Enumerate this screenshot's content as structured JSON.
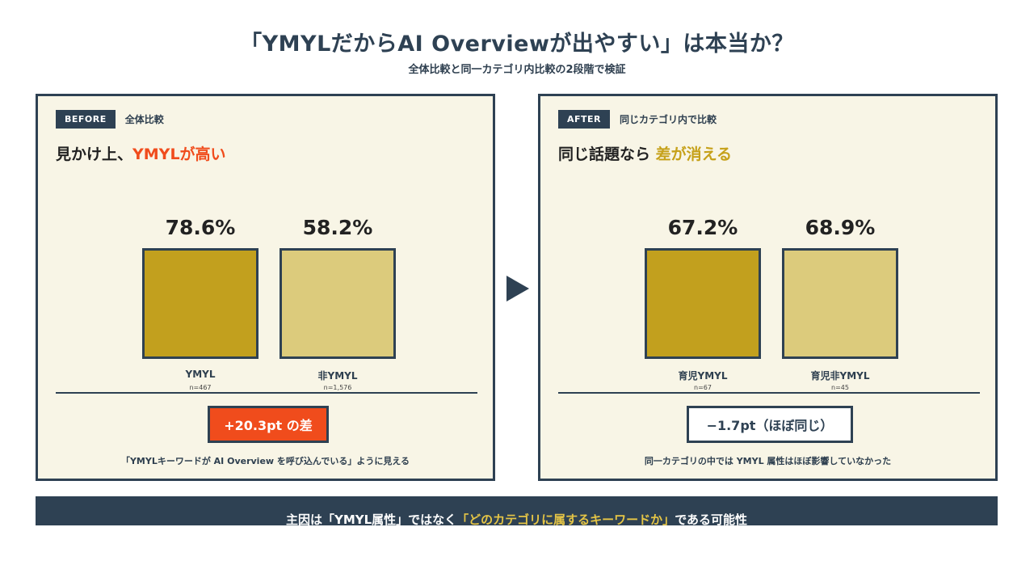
{
  "title": "「YMYLだからAI Overviewが出やすい」は本当か？",
  "subtitle": "全体比較と同一カテゴリ内比較の2段階で検証",
  "left": {
    "tag": "BEFORE",
    "tag_desc": "全体比較",
    "heading_pre": "見かけ上、",
    "heading_hl": "YMYLが高い",
    "diff": "+20.3pt の差",
    "note": "「YMYLキーワードが AI Overview を呼び込んでいる」ように見える"
  },
  "right": {
    "tag": "AFTER",
    "tag_desc": "同じカテゴリ内で比較",
    "heading_pre": "同じ話題なら ",
    "heading_hl": "差が消える",
    "diff": "−1.7pt（ほぼ同じ）",
    "note": "同一カテゴリの中では YMYL 属性はほぼ影響していなかった"
  },
  "footer": {
    "pre": "主因は「YMYL属性」ではなく",
    "hl": "「どのカテゴリに属するキーワードか」",
    "post": "である可能性"
  },
  "colors": {
    "navy": "#2e4153",
    "accent_red": "#f04c1c",
    "gold": "#c2a01e",
    "light_gold": "#dccb7c",
    "panel_bg": "#f8f5e6"
  },
  "icons": {
    "arrow": "triangle-right-icon"
  },
  "chart_data": [
    {
      "type": "bar",
      "categories": [
        "YMYL",
        "非YMYL"
      ],
      "values": [
        78.6,
        58.2
      ],
      "value_labels": [
        "78.6%",
        "58.2%"
      ],
      "n_labels": [
        "n=467",
        "n=1,576"
      ]
    },
    {
      "type": "bar",
      "categories": [
        "育児YMYL",
        "育児非YMYL"
      ],
      "values": [
        67.2,
        68.9
      ],
      "value_labels": [
        "67.2%",
        "68.9%"
      ],
      "n_labels": [
        "n=67",
        "n=45"
      ]
    }
  ]
}
